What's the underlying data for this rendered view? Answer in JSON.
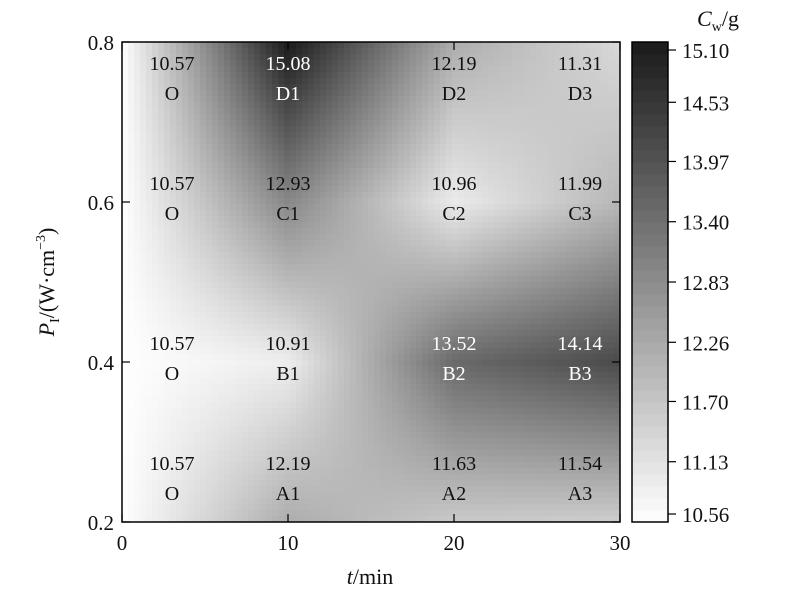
{
  "chart_data": {
    "type": "heatmap",
    "title": "",
    "xlabel": {
      "var": "t",
      "unit": "/min"
    },
    "ylabel": {
      "var": "P",
      "sub": "I",
      "unit_pre": "/(W·cm",
      "sup": "−3",
      "unit_post": ")"
    },
    "xlim": [
      0,
      30
    ],
    "ylim": [
      0.2,
      0.8
    ],
    "x_ticks": [
      0,
      10,
      20,
      30
    ],
    "y_ticks": [
      "0.2",
      "0.4",
      "0.6",
      "0.8"
    ],
    "colorbar": {
      "title": {
        "var": "C",
        "sub": "w",
        "unit": "/g"
      },
      "range": [
        10.56,
        15.1
      ],
      "ticks": [
        "10.56",
        "11.13",
        "11.70",
        "12.26",
        "12.83",
        "13.40",
        "13.97",
        "14.53",
        "15.10"
      ],
      "color_low": "#ffffff",
      "color_high": "#1a1a1a"
    },
    "points": [
      {
        "label": "O",
        "t": 0,
        "p": 0.2,
        "value": 10.57,
        "text": "10.57"
      },
      {
        "label": "O",
        "t": 0,
        "p": 0.4,
        "value": 10.57,
        "text": "10.57"
      },
      {
        "label": "O",
        "t": 0,
        "p": 0.6,
        "value": 10.57,
        "text": "10.57"
      },
      {
        "label": "O",
        "t": 0,
        "p": 0.8,
        "value": 10.57,
        "text": "10.57"
      },
      {
        "label": "A1",
        "t": 10,
        "p": 0.2,
        "value": 12.19,
        "text": "12.19"
      },
      {
        "label": "B1",
        "t": 10,
        "p": 0.4,
        "value": 10.91,
        "text": "10.91"
      },
      {
        "label": "C1",
        "t": 10,
        "p": 0.6,
        "value": 12.93,
        "text": "12.93"
      },
      {
        "label": "D1",
        "t": 10,
        "p": 0.8,
        "value": 15.08,
        "text": "15.08"
      },
      {
        "label": "A2",
        "t": 20,
        "p": 0.2,
        "value": 11.63,
        "text": "11.63"
      },
      {
        "label": "B2",
        "t": 20,
        "p": 0.4,
        "value": 13.52,
        "text": "13.52"
      },
      {
        "label": "C2",
        "t": 20,
        "p": 0.6,
        "value": 10.96,
        "text": "10.96"
      },
      {
        "label": "D2",
        "t": 20,
        "p": 0.8,
        "value": 12.19,
        "text": "12.19"
      },
      {
        "label": "A3",
        "t": 30,
        "p": 0.2,
        "value": 11.54,
        "text": "11.54"
      },
      {
        "label": "B3",
        "t": 30,
        "p": 0.4,
        "value": 14.14,
        "text": "14.14"
      },
      {
        "label": "C3",
        "t": 30,
        "p": 0.6,
        "value": 11.99,
        "text": "11.99"
      },
      {
        "label": "D3",
        "t": 30,
        "p": 0.8,
        "value": 11.31,
        "text": "11.31"
      }
    ]
  }
}
